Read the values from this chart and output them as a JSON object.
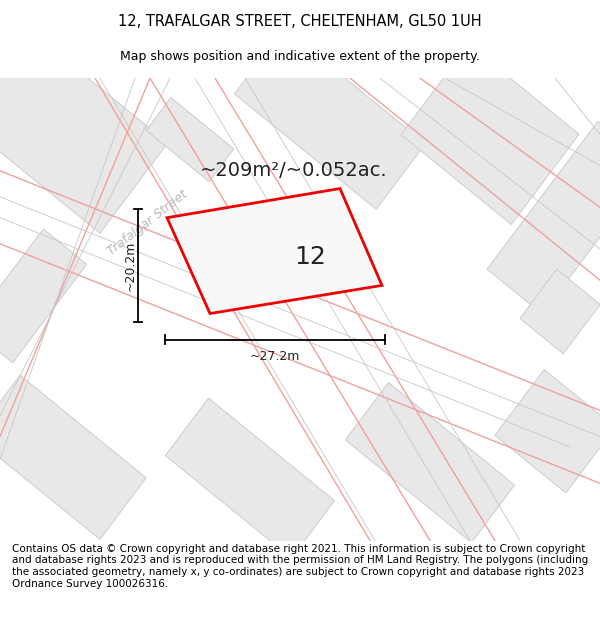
{
  "title_line1": "12, TRAFALGAR STREET, CHELTENHAM, GL50 1UH",
  "title_line2": "Map shows position and indicative extent of the property.",
  "footer_text": "Contains OS data © Crown copyright and database right 2021. This information is subject to Crown copyright and database rights 2023 and is reproduced with the permission of HM Land Registry. The polygons (including the associated geometry, namely x, y co-ordinates) are subject to Crown copyright and database rights 2023 Ordnance Survey 100026316.",
  "map_bg_color": "#f2f2f2",
  "building_fill": "#e8e8e8",
  "building_stroke": "#cccccc",
  "road_line_color": "#f0a0a0",
  "road_line_color2": "#c8c8c8",
  "property_outline_color": "#ee0000",
  "property_fill": "#f8f8f8",
  "property_label": "12",
  "area_label": "~209m²/~0.052ac.",
  "width_label": "~27.2m",
  "height_label": "~20.2m",
  "street_label": "Trafalgar Street",
  "title_fontsize": 10.5,
  "footer_fontsize": 7.8
}
